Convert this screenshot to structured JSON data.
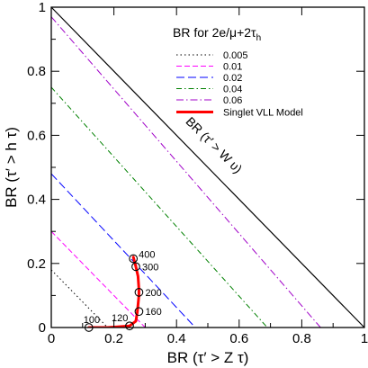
{
  "chart_data": {
    "type": "line",
    "xlabel": "BR (τ′ > Z τ)",
    "ylabel": "BR (τ′ > h τ)",
    "xlim": [
      0,
      1
    ],
    "ylim": [
      0,
      1
    ],
    "x_ticks": [
      {
        "value": 0,
        "label": "0"
      },
      {
        "value": 0.2,
        "label": "0.2"
      },
      {
        "value": 0.4,
        "label": "0.4"
      },
      {
        "value": 0.6,
        "label": "0.6"
      },
      {
        "value": 0.8,
        "label": "0.8"
      },
      {
        "value": 1,
        "label": "1"
      }
    ],
    "y_ticks": [
      {
        "value": 0,
        "label": "0"
      },
      {
        "value": 0.2,
        "label": "0.2"
      },
      {
        "value": 0.4,
        "label": "0.4"
      },
      {
        "value": 0.6,
        "label": "0.6"
      },
      {
        "value": 0.8,
        "label": "0.8"
      },
      {
        "value": 1,
        "label": "1"
      }
    ],
    "grid": false,
    "legend": {
      "position": "top-right",
      "title_main": "BR for 2e/μ+2τ",
      "title_sub": "h"
    },
    "boundary": {
      "label": "BR (τ′ > W υ)",
      "points": [
        [
          0,
          1
        ],
        [
          1,
          0
        ]
      ],
      "color": "#000000"
    },
    "contours": [
      {
        "name": "0.005",
        "color": "#000000",
        "dash": "1.5,3",
        "points": [
          [
            0,
            0.18
          ],
          [
            0.18,
            0
          ]
        ]
      },
      {
        "name": "0.01",
        "color": "#ff00ff",
        "dash": "6,3",
        "points": [
          [
            0,
            0.3
          ],
          [
            0.3,
            0
          ]
        ]
      },
      {
        "name": "0.02",
        "color": "#0000ff",
        "dash": "9,4",
        "points": [
          [
            0,
            0.48
          ],
          [
            0.46,
            0
          ]
        ]
      },
      {
        "name": "0.04",
        "color": "#008000",
        "dash": "6,3,1.5,3",
        "points": [
          [
            0,
            0.75
          ],
          [
            0.69,
            0
          ]
        ]
      },
      {
        "name": "0.06",
        "color": "#a000c8",
        "dash": "8,3,1.5,3",
        "points": [
          [
            0,
            0.97
          ],
          [
            0.86,
            0
          ]
        ]
      }
    ],
    "model": {
      "name": "Singlet VLL Model",
      "color": "#ff0000",
      "curve": [
        [
          0.12,
          0.0
        ],
        [
          0.18,
          0.0
        ],
        [
          0.25,
          0.005
        ],
        [
          0.27,
          0.02
        ],
        [
          0.275,
          0.05
        ],
        [
          0.28,
          0.1
        ],
        [
          0.28,
          0.12
        ],
        [
          0.277,
          0.16
        ],
        [
          0.27,
          0.19
        ],
        [
          0.262,
          0.22
        ]
      ],
      "mass_points": [
        {
          "label": "100",
          "x": 0.12,
          "y": 0.0
        },
        {
          "label": "120",
          "x": 0.25,
          "y": 0.005
        },
        {
          "label": "160",
          "x": 0.28,
          "y": 0.05
        },
        {
          "label": "200",
          "x": 0.28,
          "y": 0.11
        },
        {
          "label": "300",
          "x": 0.27,
          "y": 0.19
        },
        {
          "label": "400",
          "x": 0.262,
          "y": 0.215
        }
      ]
    }
  }
}
